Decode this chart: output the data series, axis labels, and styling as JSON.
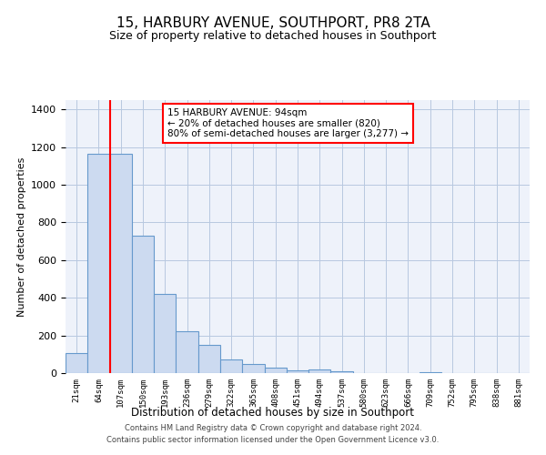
{
  "title": "15, HARBURY AVENUE, SOUTHPORT, PR8 2TA",
  "subtitle": "Size of property relative to detached houses in Southport",
  "xlabel": "Distribution of detached houses by size in Southport",
  "ylabel": "Number of detached properties",
  "bin_labels": [
    "21sqm",
    "64sqm",
    "107sqm",
    "150sqm",
    "193sqm",
    "236sqm",
    "279sqm",
    "322sqm",
    "365sqm",
    "408sqm",
    "451sqm",
    "494sqm",
    "537sqm",
    "580sqm",
    "623sqm",
    "666sqm",
    "709sqm",
    "752sqm",
    "795sqm",
    "838sqm",
    "881sqm"
  ],
  "bar_heights": [
    107,
    1163,
    1163,
    730,
    420,
    220,
    150,
    72,
    50,
    28,
    15,
    18,
    8,
    0,
    0,
    0,
    5,
    0,
    0,
    0,
    0
  ],
  "bar_color": "#ccdaf0",
  "bar_edge_color": "#6699cc",
  "annotation_title": "15 HARBURY AVENUE: 94sqm",
  "annotation_line1": "← 20% of detached houses are smaller (820)",
  "annotation_line2": "80% of semi-detached houses are larger (3,277) →",
  "ylim": [
    0,
    1450
  ],
  "yticks": [
    0,
    200,
    400,
    600,
    800,
    1000,
    1200,
    1400
  ],
  "footer_line1": "Contains HM Land Registry data © Crown copyright and database right 2024.",
  "footer_line2": "Contains public sector information licensed under the Open Government Licence v3.0.",
  "background_color": "#eef2fa"
}
